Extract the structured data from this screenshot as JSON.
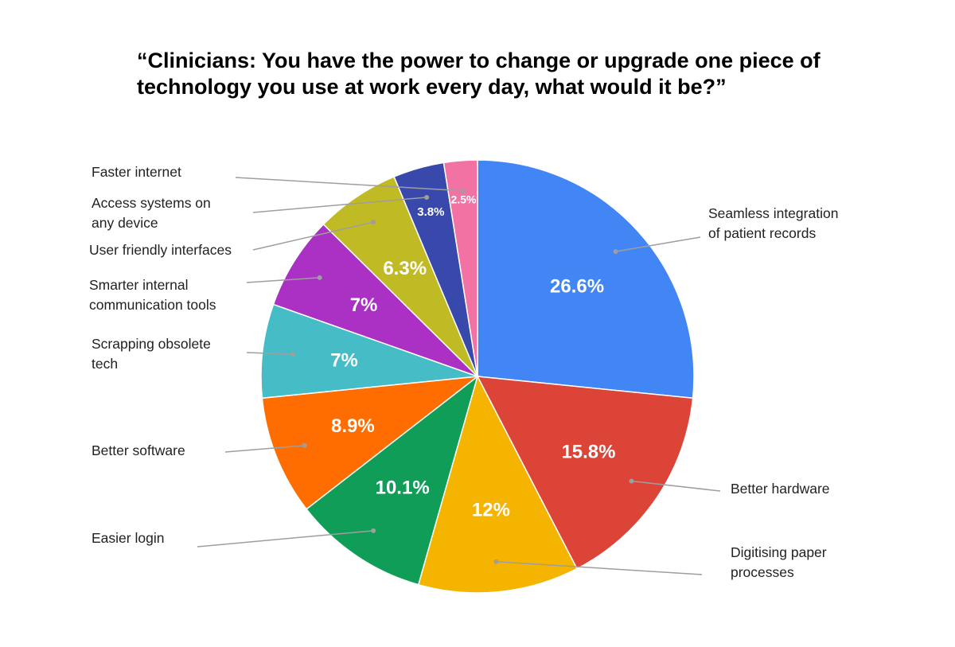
{
  "chart_data": {
    "type": "pie",
    "title": "“Clinicians: You have the power to change or upgrade one piece of technology you use at work every day, what would it be?”",
    "slices": [
      {
        "label": "Seamless integration of patient records",
        "value": 26.6,
        "display": "26.6%",
        "color": "#4285f4"
      },
      {
        "label": "Better hardware",
        "value": 15.8,
        "display": "15.8%",
        "color": "#db4437"
      },
      {
        "label": "Digitising paper processes",
        "value": 12,
        "display": "12%",
        "color": "#f4b400"
      },
      {
        "label": "Easier login",
        "value": 10.1,
        "display": "10.1%",
        "color": "#0f9d58"
      },
      {
        "label": "Better software",
        "value": 8.9,
        "display": "8.9%",
        "color": "#ff6d00"
      },
      {
        "label": "Scrapping obsolete tech",
        "value": 7,
        "display": "7%",
        "color": "#46bdc6"
      },
      {
        "label": "Smarter internal communication tools",
        "value": 7,
        "display": "7%",
        "color": "#ab30c4"
      },
      {
        "label": "User friendly interfaces",
        "value": 6.3,
        "display": "6.3%",
        "color": "#c0ba25"
      },
      {
        "label": "Access systems on any device",
        "value": 3.8,
        "display": "3.8%",
        "color": "#3949ab"
      },
      {
        "label": "Faster internet",
        "value": 2.5,
        "display": "2.5%",
        "color": "#f272a4"
      }
    ],
    "legend": "callout-labels"
  }
}
